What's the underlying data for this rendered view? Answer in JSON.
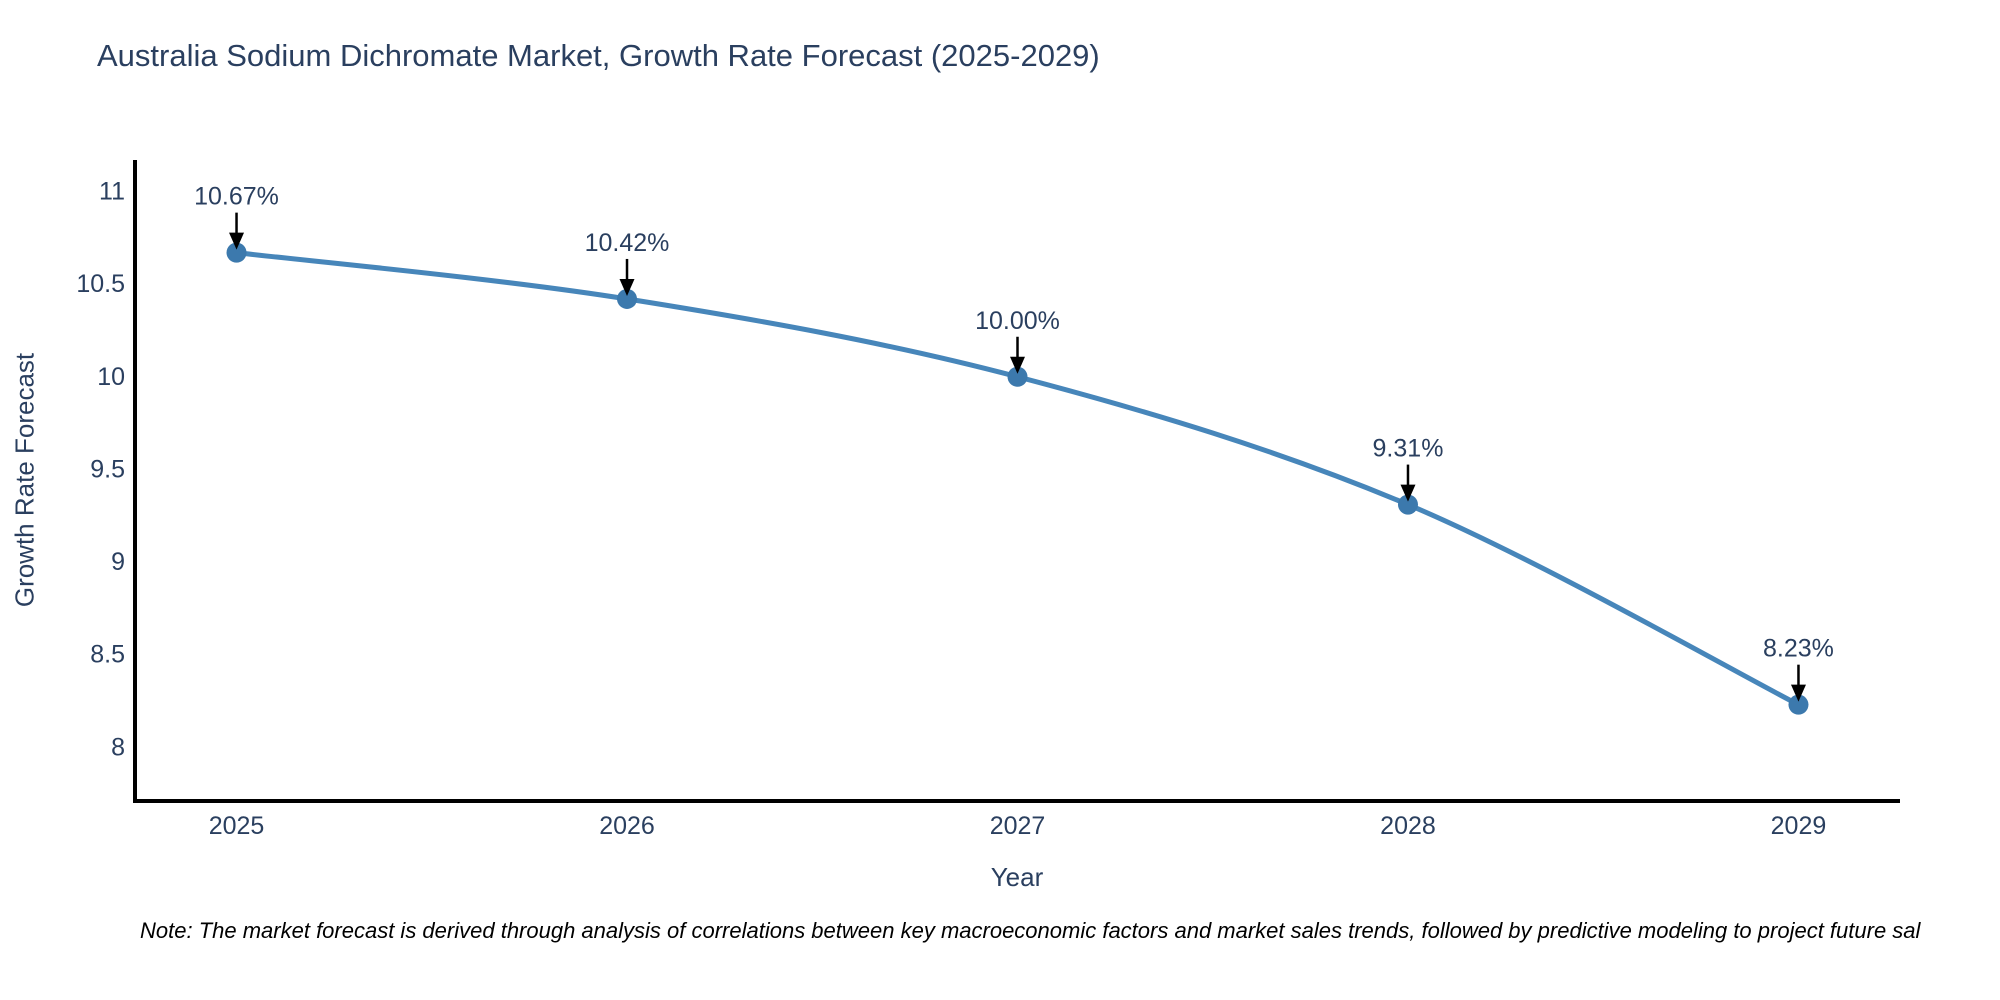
{
  "title": "Australia Sodium Dichromate Market, Growth Rate Forecast (2025-2029)",
  "note": "Note: The market forecast is derived through analysis of correlations between key macroeconomic factors and market sales trends, followed by predictive modeling to project future sal",
  "chart_data": {
    "type": "line",
    "title": "Australia Sodium Dichromate Market, Growth Rate Forecast (2025-2029)",
    "xlabel": "Year",
    "ylabel": "Growth Rate Forecast",
    "x": [
      2025,
      2026,
      2027,
      2028,
      2029
    ],
    "y": [
      10.67,
      10.42,
      10.0,
      9.31,
      8.23
    ],
    "point_labels": [
      "10.67%",
      "10.42%",
      "10.00%",
      "9.31%",
      "8.23%"
    ],
    "x_ticks": [
      "2025",
      "2026",
      "2027",
      "2028",
      "2029"
    ],
    "y_ticks": [
      8,
      8.5,
      9,
      9.5,
      10,
      10.5,
      11
    ],
    "x_range": [
      2024.74,
      2029.26
    ],
    "y_range": [
      7.71,
      11.17
    ],
    "grid": false,
    "legend": false,
    "line_shape": "spline",
    "colors": {
      "line": "#4786ba",
      "marker": "#3c79ad",
      "axis": "#000000",
      "tick_text": "#2a3f5f",
      "annotation_text": "#2a3f5f",
      "arrow": "#000000",
      "background": "#ffffff"
    }
  }
}
